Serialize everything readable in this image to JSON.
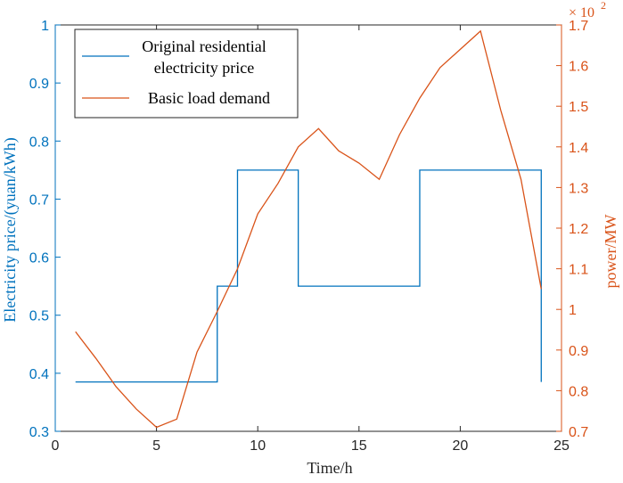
{
  "chart_data": {
    "type": "line",
    "title": "",
    "xlabel": "Time/h",
    "ylabel_left": "Electricity price/(yuan/kWh)",
    "ylabel_right": "power/MW",
    "right_axis_multiplier": "× 10",
    "right_axis_exponent": "2",
    "xlim": [
      0,
      25
    ],
    "ylim_left": [
      0.3,
      1.0
    ],
    "ylim_right": [
      0.7,
      1.7
    ],
    "xticks": [
      "0",
      "5",
      "10",
      "15",
      "20",
      "25"
    ],
    "yticks_left": [
      "0.3",
      "0.4",
      "0.5",
      "0.6",
      "0.7",
      "0.8",
      "0.9",
      "1"
    ],
    "yticks_right": [
      "0.7",
      "0.8",
      "0.9",
      "1",
      "1.1",
      "1.2",
      "1.3",
      "1.4",
      "1.5",
      "1.6",
      "1.7"
    ],
    "grid": false,
    "legend_position": "top-left",
    "colors": {
      "price": "#0072BD",
      "load": "#D95319",
      "axes": "#262626"
    },
    "series": [
      {
        "name": "Original residential electricity price",
        "legend_lines": [
          "Original residential",
          "electricity price"
        ],
        "axis": "left",
        "style": "step",
        "x": [
          1,
          8,
          8,
          9,
          9,
          12,
          12,
          18,
          18,
          24,
          24
        ],
        "y": [
          0.385,
          0.385,
          0.55,
          0.55,
          0.75,
          0.75,
          0.55,
          0.55,
          0.75,
          0.75,
          0.385
        ]
      },
      {
        "name": "Basic load demand",
        "legend_lines": [
          "Basic load demand"
        ],
        "axis": "right",
        "style": "line",
        "x": [
          1,
          2,
          3,
          4,
          5,
          6,
          7,
          8,
          9,
          10,
          11,
          12,
          13,
          14,
          15,
          16,
          17,
          18,
          19,
          20,
          21,
          22,
          23,
          24
        ],
        "y": [
          0.945,
          0.88,
          0.81,
          0.755,
          0.71,
          0.73,
          0.895,
          0.995,
          1.1,
          1.235,
          1.31,
          1.4,
          1.445,
          1.39,
          1.36,
          1.32,
          1.43,
          1.52,
          1.595,
          1.64,
          1.685,
          1.49,
          1.32,
          1.05
        ]
      }
    ]
  }
}
